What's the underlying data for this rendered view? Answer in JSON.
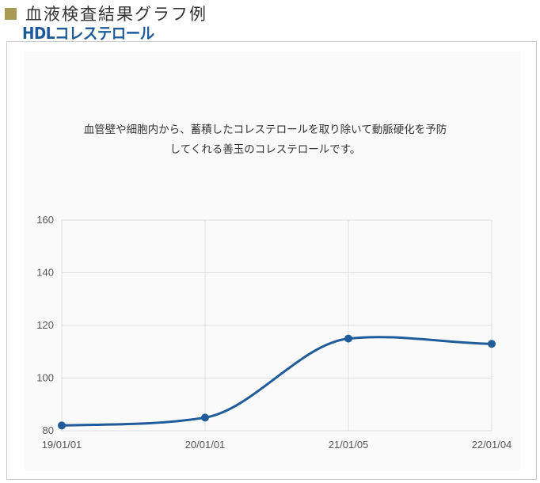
{
  "page": {
    "heading": "血液検査結果グラフ例"
  },
  "description": {
    "line1": "血管壁や細胞内から、蓄積したコレステロールを取り除いて動脈硬化を予防",
    "line2": "してくれる善玉のコレステロールです。"
  },
  "colors": {
    "accent_square": "#a89a55",
    "title": "#1c5a9c",
    "line": "#1f5c99",
    "grid": "#dddddd"
  },
  "chart_data": {
    "type": "line",
    "title": "HDLコレステロール",
    "xlabel": "",
    "ylabel": "",
    "x": [
      "19/01/01",
      "20/01/01",
      "21/01/05",
      "22/01/04"
    ],
    "series": [
      {
        "values": [
          82,
          85,
          115,
          113
        ]
      }
    ],
    "ylim": [
      80,
      160
    ],
    "yticks": [
      80,
      100,
      120,
      140,
      160
    ],
    "grid": true,
    "smooth": true
  }
}
